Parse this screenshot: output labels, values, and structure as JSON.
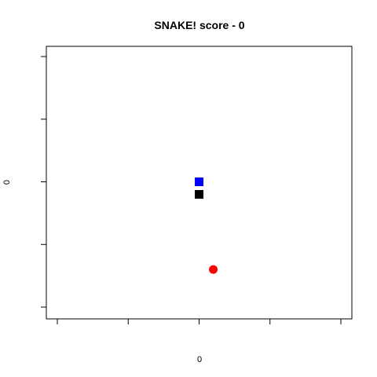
{
  "game": {
    "title": "SNAKE! score - 0",
    "score": 0,
    "board": {
      "xlim": [
        -10,
        10
      ],
      "ylim": [
        -10,
        10
      ],
      "x_ticks": [
        -10,
        -5,
        0,
        5,
        10
      ],
      "y_ticks": [
        -10,
        -5,
        0,
        5,
        10
      ],
      "xlabel": "0",
      "ylabel": "0",
      "tick_labels_shown": false,
      "grid": false
    },
    "snake": {
      "head": {
        "x": 0,
        "y": 0
      },
      "body": [
        {
          "x": 0,
          "y": -1
        }
      ],
      "head_color": "#0000ff",
      "body_color": "#000000"
    },
    "food": {
      "x": 1,
      "y": -7,
      "color": "#ff0000"
    }
  }
}
